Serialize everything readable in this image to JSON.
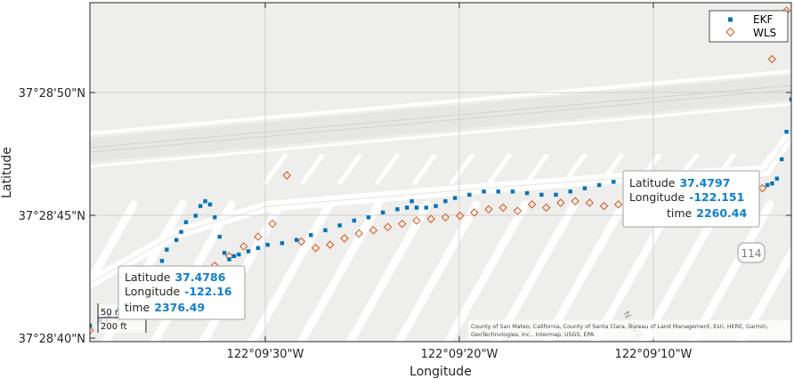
{
  "axes": {
    "xlabel": "Longitude",
    "ylabel": "Latitude",
    "x_ticks": [
      "122°09'30\"W",
      "122°09'20\"W",
      "122°09'10\"W"
    ],
    "y_ticks": [
      "37°28'50\"N",
      "37°28'45\"N",
      "37°28'40\"N"
    ]
  },
  "legend": {
    "placement": "top-right",
    "items": [
      {
        "label": "EKF",
        "color": "#0072BD",
        "marker": "square"
      },
      {
        "label": "WLS",
        "color": "#D95319",
        "marker": "diamond"
      }
    ]
  },
  "datatips": [
    {
      "lat_label": "Latitude",
      "lat": "37.4797",
      "lon_label": "Longitude",
      "lon": "-122.151",
      "time_label": "time",
      "time": "2260.44"
    },
    {
      "lat_label": "Latitude",
      "lat": "37.4786",
      "lon_label": "Longitude",
      "lon": "-122.16",
      "time_label": "time",
      "time": "2376.49"
    }
  ],
  "scalebar": {
    "metric": "50 m",
    "imperial": "200 ft"
  },
  "road_shield": "114",
  "street_label": "N AVE",
  "attribution_lines": [
    "County of San Mateo, California, County of Santa Clara, Bureau of Land Management, Esri, HERE, Garmin,",
    "GeoTechnologies, Inc., Intermap, USGS, EPA."
  ],
  "chart_data": {
    "type": "scatter",
    "xlabel": "Longitude",
    "ylabel": "Latitude",
    "xlim": [
      -122.1611,
      -122.1465
    ],
    "ylim": [
      37.47775,
      37.47985
    ],
    "grid": true,
    "legend_placement": "top-right",
    "series": [
      {
        "name": "EKF",
        "color": "#0072BD",
        "marker": "square",
        "x": [
          -122.1611,
          -122.1609,
          -122.1607,
          -122.1605,
          -122.1603,
          -122.1601,
          -122.16,
          -122.1598,
          -122.1596,
          -122.1595,
          -122.1593,
          -122.1592,
          -122.1591,
          -122.1589,
          -122.1588,
          -122.1587,
          -122.1586,
          -122.1585,
          -122.1584,
          -122.1583,
          -122.1582,
          -122.1581,
          -122.158,
          -122.1578,
          -122.1576,
          -122.1574,
          -122.1571,
          -122.1568,
          -122.1565,
          -122.1562,
          -122.1559,
          -122.1556,
          -122.1553,
          -122.155,
          -122.1547,
          -122.1545,
          -122.1544,
          -122.1543,
          -122.1541,
          -122.1539,
          -122.1537,
          -122.1535,
          -122.1532,
          -122.1529,
          -122.1526,
          -122.1523,
          -122.152,
          -122.1517,
          -122.1514,
          -122.1511,
          -122.1508,
          -122.1505,
          -122.1502,
          -122.1499,
          -122.1496,
          -122.1493,
          -122.1491,
          -122.149,
          -122.1488,
          -122.1486,
          -122.1484,
          -122.1481,
          -122.1478,
          -122.1476,
          -122.1474,
          -122.1472,
          -122.147,
          -122.1469,
          -122.1468,
          -122.1467,
          -122.1466,
          -122.1465
        ],
        "y": [
          37.47785,
          37.47788,
          37.47791,
          37.47795,
          37.478,
          37.47806,
          37.47812,
          37.47818,
          37.47825,
          37.47832,
          37.47838,
          37.47843,
          37.47849,
          37.47853,
          37.47859,
          37.47862,
          37.4786,
          37.47852,
          37.4784,
          37.4783,
          37.47826,
          37.47828,
          37.47829,
          37.47831,
          37.47833,
          37.47835,
          37.47836,
          37.47838,
          37.47841,
          37.47844,
          37.47847,
          37.4785,
          37.47852,
          37.47855,
          37.47857,
          37.47858,
          37.47862,
          37.47858,
          37.47858,
          37.47859,
          37.47862,
          37.47864,
          37.47866,
          37.47868,
          37.47868,
          37.47868,
          37.47867,
          37.47866,
          37.47866,
          37.47868,
          37.4787,
          37.47872,
          37.47874,
          37.47876,
          37.47874,
          37.47872,
          37.47869,
          37.4787,
          37.47872,
          37.47875,
          37.47876,
          37.47874,
          37.47871,
          37.47871,
          37.47871,
          37.47872,
          37.47872,
          37.47873,
          37.47876,
          37.47888,
          37.47905,
          37.47925
        ]
      },
      {
        "name": "WLS",
        "color": "#D95319",
        "marker": "diamond",
        "x": [
          -122.1611,
          -122.1608,
          -122.1605,
          -122.1602,
          -122.16,
          -122.1597,
          -122.1594,
          -122.1591,
          -122.1588,
          -122.1585,
          -122.1582,
          -122.1579,
          -122.1576,
          -122.1573,
          -122.157,
          -122.1567,
          -122.1564,
          -122.1561,
          -122.1558,
          -122.1555,
          -122.1552,
          -122.1549,
          -122.1546,
          -122.1543,
          -122.154,
          -122.1537,
          -122.1534,
          -122.1531,
          -122.1528,
          -122.1525,
          -122.1522,
          -122.1519,
          -122.1516,
          -122.1513,
          -122.151,
          -122.1507,
          -122.1504,
          -122.1501,
          -122.1498,
          -122.1495,
          -122.1492,
          -122.1489,
          -122.1486,
          -122.1483,
          -122.148,
          -122.1477,
          -122.1474,
          -122.1471,
          -122.1469,
          -122.1467,
          -122.1466
        ],
        "y": [
          37.47782,
          37.47788,
          37.4779,
          37.47796,
          37.47799,
          37.47803,
          37.47808,
          37.47812,
          37.47817,
          37.47822,
          37.47828,
          37.47834,
          37.4784,
          37.47848,
          37.47878,
          37.47837,
          37.47833,
          37.47835,
          37.47839,
          37.47842,
          37.47844,
          37.47846,
          37.47848,
          37.4785,
          37.47851,
          37.47852,
          37.47853,
          37.47855,
          37.47857,
          37.47858,
          37.47856,
          37.4786,
          37.47858,
          37.47861,
          37.47862,
          37.47861,
          37.47859,
          37.4786,
          37.47861,
          37.47864,
          37.47866,
          37.47867,
          37.47869,
          37.47873,
          37.47871,
          37.47872,
          37.47873,
          37.4787,
          37.4795,
          37.47965,
          37.4798
        ]
      }
    ]
  }
}
